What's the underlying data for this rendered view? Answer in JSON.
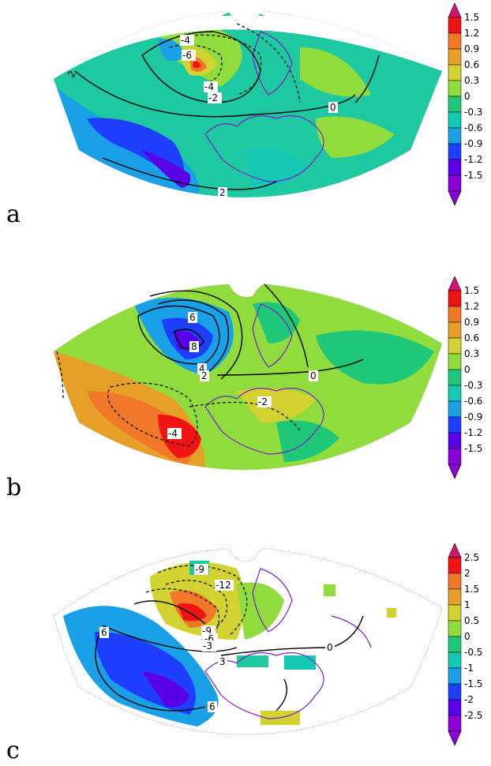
{
  "panels": [
    {
      "letter": "a",
      "colorbar": [
        "1.5",
        "1.2",
        "0.9",
        "0.6",
        "0.3",
        "0",
        "-0.3",
        "-0.6",
        "-0.9",
        "-1.2",
        "-1.5"
      ],
      "contour_labels": [
        "-4",
        "-6",
        "-4",
        "-2",
        "2",
        "0",
        "2"
      ]
    },
    {
      "letter": "b",
      "colorbar": [
        "1.5",
        "1.2",
        "0.9",
        "0.6",
        "0.3",
        "0",
        "-0.3",
        "-0.6",
        "-0.9",
        "-1.2",
        "-1.5"
      ],
      "contour_labels": [
        "6",
        "8",
        "4",
        "2",
        "0",
        "-2",
        "-4"
      ]
    },
    {
      "letter": "c",
      "colorbar": [
        "2.5",
        "2",
        "1.5",
        "1",
        "0.5",
        "0",
        "-0.5",
        "-1",
        "-1.5",
        "-2",
        "-2.5"
      ],
      "contour_labels": [
        "-9",
        "-12",
        "-9",
        "-6",
        "-3",
        "6",
        "3",
        "0",
        "6"
      ]
    }
  ],
  "colors": {
    "palette": [
      "#8a00d6",
      "#5a00e6",
      "#1f3fff",
      "#1aa0e6",
      "#14c8b4",
      "#1ec878",
      "#8fdc3c",
      "#d2d232",
      "#e6a028",
      "#f07828",
      "#f01414",
      "#d2146e"
    ],
    "coast": "#7a1fc8",
    "contour": "#000000"
  }
}
